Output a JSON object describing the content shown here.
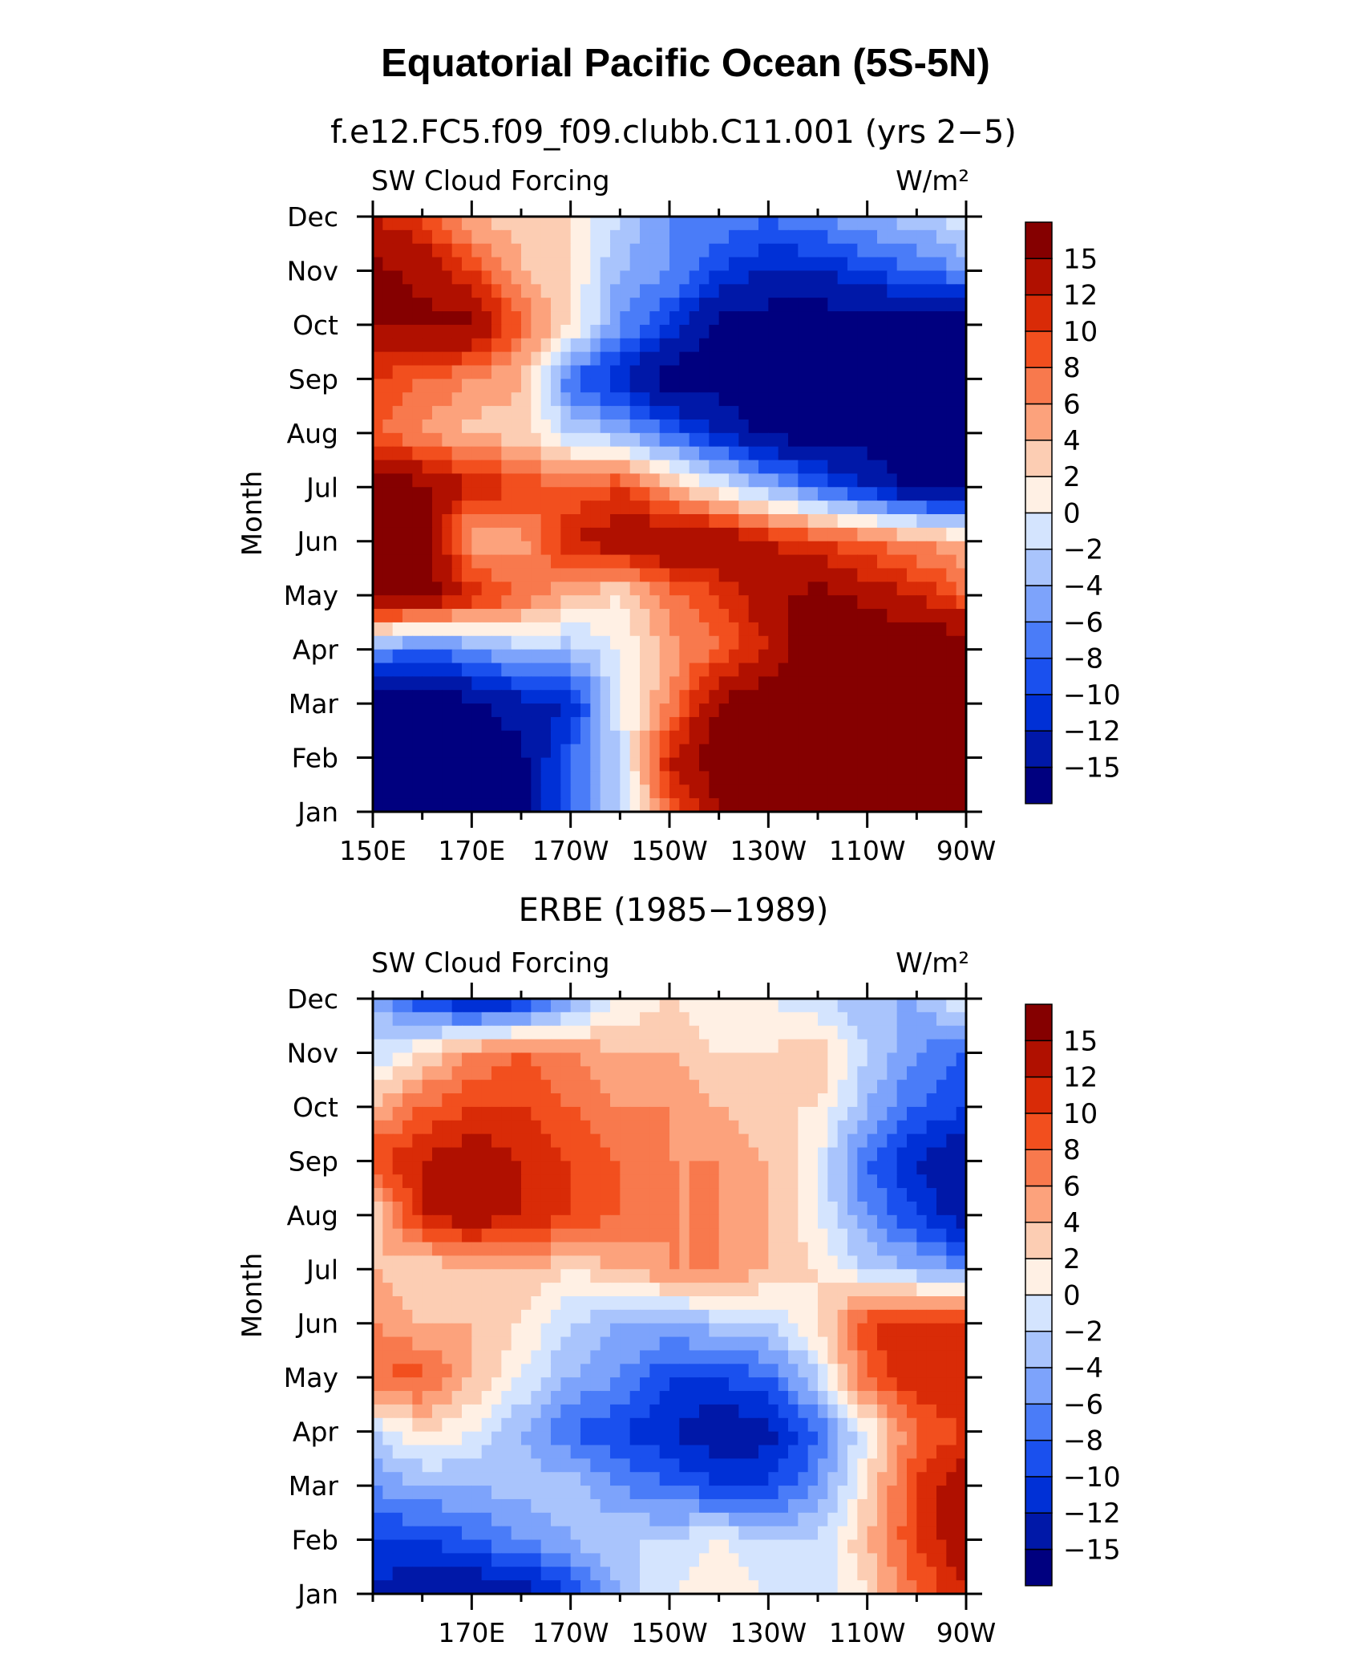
{
  "figure": {
    "title": "Equatorial Pacific Ocean (5S-5N)"
  },
  "palette": [
    "#00007f",
    "#0018a8",
    "#0030d6",
    "#1a50ee",
    "#4a7cf8",
    "#7da3fb",
    "#a9c4fc",
    "#d4e4fe",
    "#fff0e4",
    "#fccdb3",
    "#fca27c",
    "#f8794d",
    "#f24f1e",
    "#d92b07",
    "#b01000",
    "#850000"
  ],
  "chart_data": [
    {
      "type": "heatmap",
      "subtitle": "f.e12.FC5.f09_f09.clubb.C11.001 (yrs 2−5)",
      "left_label": "SW Cloud Forcing",
      "right_label": "W/m²",
      "ylabel": "Month",
      "months": [
        "Jan",
        "Feb",
        "Mar",
        "Apr",
        "May",
        "Jun",
        "Jul",
        "Aug",
        "Sep",
        "Oct",
        "Nov",
        "Dec"
      ],
      "x_ticks": [
        150,
        170,
        190,
        210,
        230,
        250,
        270
      ],
      "x_tick_labels": [
        "150E",
        "170E",
        "170W",
        "150W",
        "130W",
        "110W",
        "90W"
      ],
      "xlim": [
        150,
        270
      ],
      "colorbar_levels": [
        "15",
        "12",
        "10",
        "8",
        "6",
        "4",
        "2",
        "0",
        "−2",
        "−4",
        "−6",
        "−8",
        "−10",
        "−12",
        "−15"
      ],
      "lon": [
        150,
        160,
        170,
        180,
        190,
        200,
        210,
        220,
        230,
        240,
        250,
        260,
        270
      ],
      "values": [
        [
          -17,
          -17,
          -17,
          -16,
          -8,
          -2,
          8,
          15,
          17,
          18,
          18,
          18,
          18
        ],
        [
          -17,
          -17,
          -17,
          -16,
          -8,
          -2,
          12,
          17,
          18,
          18,
          18,
          18,
          18
        ],
        [
          -17,
          -17,
          -16,
          -13,
          -12,
          0,
          6,
          15,
          18,
          18,
          18,
          18,
          18
        ],
        [
          -6,
          -8,
          -6,
          -3,
          -3,
          0,
          5,
          8,
          12,
          18,
          18,
          18,
          18
        ],
        [
          17,
          17,
          12,
          8,
          4,
          2,
          7,
          10,
          14,
          16,
          14,
          12,
          8
        ],
        [
          17,
          17,
          4,
          5,
          12,
          14,
          16,
          15,
          12,
          10,
          8,
          6,
          4
        ],
        [
          17,
          16,
          12,
          10,
          8,
          10,
          4,
          0,
          -4,
          -8,
          -12,
          -16,
          -17
        ],
        [
          8,
          6,
          3,
          3,
          -2,
          -4,
          -8,
          -12,
          -16,
          -17,
          -17,
          -17,
          -17
        ],
        [
          10,
          8,
          6,
          4,
          -8,
          -12,
          -17,
          -17,
          -17,
          -17,
          -17,
          -17,
          -17
        ],
        [
          15,
          16,
          16,
          8,
          2,
          -6,
          -10,
          -16,
          -17,
          -17,
          -17,
          -17,
          -17
        ],
        [
          16,
          14,
          10,
          4,
          2,
          -4,
          -6,
          -10,
          -12,
          -12,
          -10,
          -8,
          -6
        ],
        [
          12,
          10,
          4,
          3,
          2,
          -2,
          -6,
          -6,
          -8,
          -6,
          -4,
          -3,
          0
        ]
      ]
    },
    {
      "type": "heatmap",
      "subtitle": "ERBE (1985−1989)",
      "left_label": "SW Cloud Forcing",
      "right_label": "W/m²",
      "ylabel": "Month",
      "months": [
        "Jan",
        "Feb",
        "Mar",
        "Apr",
        "May",
        "Jun",
        "Jul",
        "Aug",
        "Sep",
        "Oct",
        "Nov",
        "Dec"
      ],
      "x_ticks": [
        170,
        190,
        210,
        230,
        250,
        270
      ],
      "x_tick_labels": [
        "170E",
        "170W",
        "150W",
        "130W",
        "110W",
        "90W"
      ],
      "xlim": [
        150,
        270
      ],
      "colorbar_levels": [
        "15",
        "12",
        "10",
        "8",
        "6",
        "4",
        "2",
        "0",
        "−2",
        "−4",
        "−6",
        "−8",
        "−10",
        "−12",
        "−15"
      ],
      "lon": [
        150,
        160,
        170,
        180,
        190,
        200,
        210,
        220,
        230,
        240,
        250,
        260,
        270
      ],
      "values": [
        [
          -12,
          -15,
          -15,
          -14,
          -10,
          -4,
          0,
          2,
          0,
          -2,
          2,
          8,
          12
        ],
        [
          -10,
          -10,
          -8,
          -6,
          -4,
          -2,
          -2,
          0,
          -2,
          -2,
          4,
          10,
          14
        ],
        [
          -6,
          -4,
          -4,
          -3,
          -3,
          -6,
          -8,
          -10,
          -10,
          -6,
          2,
          10,
          14
        ],
        [
          -2,
          2,
          0,
          -4,
          -8,
          -10,
          -12,
          -14,
          -13,
          -8,
          0,
          8,
          10
        ],
        [
          8,
          9,
          4,
          0,
          -4,
          -6,
          -10,
          -10,
          -8,
          -2,
          8,
          12,
          12
        ],
        [
          6,
          4,
          4,
          2,
          -2,
          -4,
          -4,
          -3,
          -2,
          2,
          10,
          12,
          10
        ],
        [
          4,
          2,
          4,
          4,
          2,
          4,
          6,
          6,
          4,
          2,
          -2,
          -4,
          -6
        ],
        [
          2,
          12,
          14,
          12,
          10,
          8,
          6,
          6,
          4,
          0,
          -6,
          -10,
          -14
        ],
        [
          10,
          12,
          14,
          12,
          10,
          8,
          6,
          6,
          4,
          0,
          -8,
          -12,
          -15
        ],
        [
          4,
          8,
          10,
          10,
          8,
          6,
          6,
          4,
          2,
          2,
          -4,
          -8,
          -10
        ],
        [
          -2,
          2,
          6,
          8,
          6,
          4,
          4,
          2,
          2,
          4,
          -2,
          -6,
          -8
        ],
        [
          -4,
          -10,
          -14,
          -12,
          -6,
          0,
          2,
          0,
          0,
          -2,
          -4,
          -4,
          0
        ]
      ]
    }
  ]
}
